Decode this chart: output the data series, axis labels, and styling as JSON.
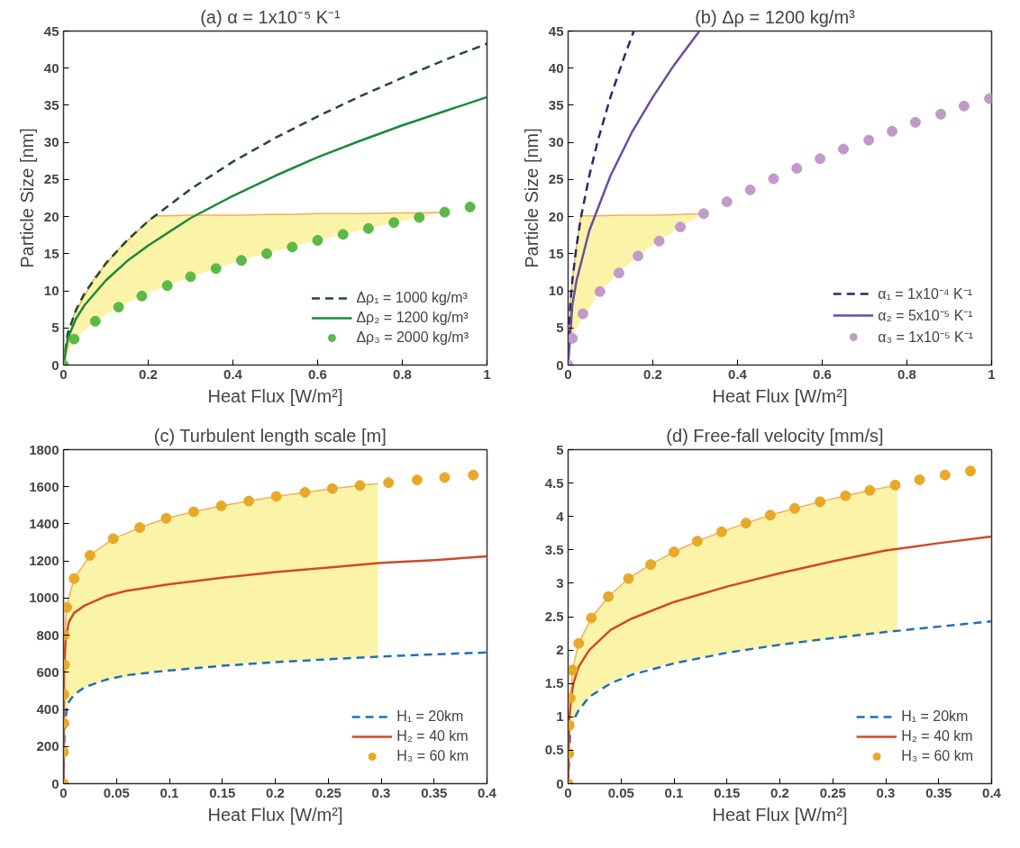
{
  "chart_data": [
    {
      "type": "line",
      "title": "(a)   α = 1x10⁻⁵ K⁻¹",
      "xlabel": "Heat Flux [W/m²]",
      "ylabel": "Particle Size [nm]",
      "xlim": [
        0,
        1
      ],
      "ylim": [
        0,
        45
      ],
      "xticks": [
        0,
        0.2,
        0.4,
        0.6,
        0.8,
        1
      ],
      "yticks": [
        0,
        5,
        10,
        15,
        20,
        25,
        30,
        35,
        40,
        45
      ],
      "legend": "bottom right",
      "series": [
        {
          "color": "#f0b060",
          "x": [
            0,
            0.025,
            0.075,
            0.13,
            0.185,
            0.215,
            0.245,
            0.3,
            0.36,
            0.42,
            0.48,
            0.54,
            0.6,
            0.66,
            0.72,
            0.78,
            0.84,
            0.9
          ],
          "values": [
            0,
            6.8,
            11.9,
            15.6,
            18.6,
            20.1,
            20.1,
            20.2,
            20.2,
            20.2,
            20.3,
            20.3,
            20.4,
            20.4,
            20.4,
            20.5,
            20.5,
            20.6
          ],
          "upper": [
            0,
            6.8,
            11.9,
            15.6,
            18.6,
            20.1,
            20.1,
            20.2,
            20.2,
            20.2,
            20.3,
            20.3,
            20.4,
            20.4,
            20.4,
            20.5,
            20.5,
            20.6
          ],
          "lower": [
            0,
            3.5,
            5.9,
            7.8,
            9.3,
            10,
            10.7,
            11.9,
            13,
            14.1,
            15,
            15.9,
            16.8,
            17.6,
            18.4,
            19.2,
            19.9,
            20.6
          ]
        },
        {
          "name": "Δρ₁ = 1000 kg/m³",
          "color": "#1e4d2b",
          "line_style": "dashed",
          "x": [
            0,
            0.01,
            0.03,
            0.05,
            0.1,
            0.15,
            0.2,
            0.3,
            0.4,
            0.5,
            0.6,
            0.7,
            0.8,
            0.9,
            1
          ],
          "values": [
            0,
            4.3,
            7.5,
            9.7,
            13.7,
            16.8,
            19.4,
            23.7,
            27.4,
            30.6,
            33.5,
            36.2,
            38.7,
            41.1,
            43.3
          ]
        },
        {
          "name": "Δρ₂ = 1200 kg/m³",
          "color": "#1a8a3a",
          "line_style": "solid",
          "x": [
            0,
            0.01,
            0.03,
            0.05,
            0.1,
            0.15,
            0.2,
            0.3,
            0.4,
            0.5,
            0.6,
            0.7,
            0.8,
            0.9,
            1
          ],
          "values": [
            0,
            3.6,
            6.3,
            8.1,
            11.4,
            14,
            16.1,
            19.8,
            22.8,
            25.5,
            28,
            30.2,
            32.3,
            34.2,
            36.1
          ]
        },
        {
          "type": "scatter",
          "name": "Δρ₃ = 2000 kg/m³",
          "color": "#5cb848",
          "marker": "circle",
          "x": [
            0,
            0.025,
            0.075,
            0.13,
            0.185,
            0.245,
            0.3,
            0.36,
            0.42,
            0.48,
            0.54,
            0.6,
            0.66,
            0.72,
            0.78,
            0.84,
            0.9,
            0.96
          ],
          "values": [
            0,
            3.5,
            5.9,
            7.8,
            9.3,
            10.7,
            11.9,
            13,
            14.1,
            15,
            15.9,
            16.8,
            17.6,
            18.4,
            19.2,
            19.9,
            20.6,
            21.3
          ]
        }
      ]
    },
    {
      "type": "line",
      "title": "(b)   Δρ = 1200 kg/m³",
      "xlabel": "Heat Flux [W/m²]",
      "ylabel": "Particle Size [nm]",
      "xlim": [
        0,
        1
      ],
      "ylim": [
        0,
        45
      ],
      "xticks": [
        0,
        0.2,
        0.4,
        0.6,
        0.8,
        1
      ],
      "yticks": [
        0,
        5,
        10,
        15,
        20,
        25,
        30,
        35,
        40,
        45
      ],
      "legend": "bottom right",
      "series": [
        {
          "color": "#f0b060",
          "x": [
            0,
            0.005,
            0.01,
            0.02,
            0.03,
            0.075,
            0.12,
            0.165,
            0.215,
            0.265,
            0.32
          ],
          "values": [
            0,
            8.1,
            11.4,
            16.1,
            20.1,
            20.1,
            20.2,
            20.2,
            20.2,
            20.3,
            20.4
          ],
          "upper": [
            0,
            8.1,
            11.4,
            16.1,
            20.1,
            20.1,
            20.2,
            20.2,
            20.2,
            20.3,
            20.4
          ],
          "lower": [
            0,
            2.5,
            3.6,
            5,
            5.9,
            9.9,
            12.4,
            14.7,
            16.7,
            18.6,
            20.4
          ]
        },
        {
          "name": "α₁ = 1x10⁻⁴ K⁻¹",
          "color": "#2a2a6e",
          "line_style": "dashed",
          "x": [
            0,
            0.005,
            0.01,
            0.02,
            0.03,
            0.05,
            0.07,
            0.1,
            0.13,
            0.155
          ],
          "values": [
            0,
            8.1,
            11.4,
            16.1,
            19.8,
            25.5,
            30.2,
            36.1,
            41.1,
            45
          ]
        },
        {
          "name": "α₂ = 5x10⁻⁵ K⁻¹",
          "color": "#6a4ea0",
          "line_style": "solid",
          "x": [
            0,
            0.01,
            0.02,
            0.05,
            0.1,
            0.15,
            0.2,
            0.25,
            0.31
          ],
          "values": [
            0,
            8.1,
            11.4,
            18.1,
            25.5,
            31.3,
            36.1,
            40.4,
            45
          ]
        },
        {
          "type": "scatter",
          "name": "α₃ = 1x10⁻⁵ K⁻¹",
          "color": "#c29ac9",
          "marker": "circle",
          "x": [
            0,
            0.01,
            0.035,
            0.075,
            0.12,
            0.165,
            0.215,
            0.265,
            0.32,
            0.375,
            0.43,
            0.485,
            0.54,
            0.595,
            0.65,
            0.71,
            0.765,
            0.82,
            0.88,
            0.935,
            0.995
          ],
          "values": [
            0,
            3.6,
            6.9,
            9.9,
            12.4,
            14.7,
            16.7,
            18.6,
            20.4,
            22,
            23.6,
            25.1,
            26.5,
            27.8,
            29.1,
            30.3,
            31.5,
            32.7,
            33.8,
            34.9,
            35.9
          ]
        }
      ]
    },
    {
      "type": "line",
      "title": "(c)   Turbulent length scale [m]",
      "xlabel": "Heat Flux [W/m²]",
      "xlim": [
        0,
        0.4
      ],
      "ylim": [
        0,
        1800
      ],
      "xticks": [
        0,
        0.05,
        0.1,
        0.15,
        0.2,
        0.25,
        0.3,
        0.35,
        0.4
      ],
      "yticks": [
        0,
        200,
        400,
        600,
        800,
        1000,
        1200,
        1400,
        1600,
        1800
      ],
      "legend": "bottom right",
      "series": [
        {
          "color": "#f0b060",
          "x": [
            0,
            0.001,
            0.003,
            0.005,
            0.01,
            0.025,
            0.047,
            0.072,
            0.097,
            0.123,
            0.149,
            0.175,
            0.201,
            0.228,
            0.254,
            0.28,
            0.297
          ],
          "values": [
            0,
            800,
            950,
            1000,
            1105,
            1230,
            1320,
            1380,
            1430,
            1465,
            1497,
            1523,
            1548,
            1570,
            1590,
            1607,
            1617
          ],
          "upper": [
            0,
            800,
            950,
            1000,
            1105,
            1230,
            1320,
            1380,
            1430,
            1465,
            1497,
            1523,
            1548,
            1570,
            1590,
            1607,
            1617
          ],
          "lower": [
            0,
            300,
            400,
            440,
            480,
            530,
            565,
            590,
            610,
            625,
            640,
            650,
            658,
            667,
            675,
            681,
            685
          ]
        },
        {
          "name": "H₁ = 20km",
          "color": "#1f6fb8",
          "line_style": "dashed",
          "x": [
            0,
            0.001,
            0.003,
            0.005,
            0.01,
            0.02,
            0.04,
            0.06,
            0.1,
            0.15,
            0.2,
            0.25,
            0.3,
            0.35,
            0.4
          ],
          "values": [
            0,
            300,
            400,
            440,
            480,
            520,
            560,
            585,
            610,
            635,
            655,
            670,
            685,
            697,
            707
          ]
        },
        {
          "name": "H₂ = 40 km",
          "color": "#d04a25",
          "line_style": "solid",
          "x": [
            0,
            0.0005,
            0.002,
            0.005,
            0.01,
            0.02,
            0.04,
            0.06,
            0.1,
            0.15,
            0.2,
            0.25,
            0.3,
            0.35,
            0.4
          ],
          "values": [
            0,
            600,
            780,
            870,
            920,
            960,
            1010,
            1040,
            1075,
            1110,
            1140,
            1165,
            1190,
            1205,
            1225
          ]
        },
        {
          "type": "scatter",
          "name": "H₃ = 60 km",
          "color": "#e8a828",
          "marker": "circle",
          "x": [
            0,
            0,
            0.0005,
            0.0005,
            0.001,
            0.001,
            0.003,
            0.01,
            0.025,
            0.047,
            0.072,
            0.097,
            0.123,
            0.149,
            0.175,
            0.201,
            0.228,
            0.254,
            0.28,
            0.307,
            0.334,
            0.36,
            0.387
          ],
          "values": [
            0,
            170,
            325,
            480,
            640,
            800,
            950,
            1105,
            1230,
            1320,
            1380,
            1430,
            1465,
            1497,
            1523,
            1548,
            1570,
            1590,
            1607,
            1622,
            1637,
            1650,
            1663
          ]
        }
      ]
    },
    {
      "type": "line",
      "title": "(d)   Free-fall velocity [mm/s]",
      "xlabel": "Heat Flux [W/m²]",
      "xlim": [
        0,
        0.4
      ],
      "ylim": [
        0,
        5
      ],
      "xticks": [
        0,
        0.05,
        0.1,
        0.15,
        0.2,
        0.25,
        0.3,
        0.35,
        0.4
      ],
      "yticks": [
        0,
        0.5,
        1,
        1.5,
        2,
        2.5,
        3,
        3.5,
        4,
        4.5,
        5
      ],
      "legend": "bottom right",
      "series": [
        {
          "color": "#f0b060",
          "x": [
            0,
            0.001,
            0.004,
            0.01,
            0.022,
            0.038,
            0.057,
            0.078,
            0.1,
            0.122,
            0.145,
            0.168,
            0.191,
            0.214,
            0.238,
            0.262,
            0.285,
            0.311
          ],
          "values": [
            0,
            0.87,
            1.7,
            2.1,
            2.48,
            2.8,
            3.07,
            3.28,
            3.47,
            3.63,
            3.77,
            3.9,
            4.02,
            4.12,
            4.22,
            4.31,
            4.39,
            4.47
          ],
          "upper": [
            0,
            0.87,
            1.7,
            2.1,
            2.48,
            2.8,
            3.07,
            3.28,
            3.47,
            3.63,
            3.77,
            3.9,
            4.02,
            4.12,
            4.22,
            4.31,
            4.39,
            4.47
          ],
          "lower": [
            0,
            0.6,
            0.9,
            1.1,
            1.33,
            1.5,
            1.64,
            1.74,
            1.8,
            1.88,
            1.95,
            2,
            2.06,
            2.1,
            2.15,
            2.19,
            2.23,
            2.28
          ]
        },
        {
          "name": "H₁ = 20km",
          "color": "#1f6fb8",
          "line_style": "dashed",
          "x": [
            0,
            0.002,
            0.005,
            0.01,
            0.02,
            0.04,
            0.06,
            0.1,
            0.15,
            0.2,
            0.25,
            0.3,
            0.35,
            0.4
          ],
          "values": [
            0,
            0.8,
            0.95,
            1.1,
            1.3,
            1.5,
            1.63,
            1.8,
            1.96,
            2.08,
            2.18,
            2.27,
            2.35,
            2.43
          ]
        },
        {
          "name": "H₂ = 40 km",
          "color": "#d04a25",
          "line_style": "solid",
          "x": [
            0,
            0.001,
            0.003,
            0.005,
            0.01,
            0.02,
            0.04,
            0.06,
            0.1,
            0.15,
            0.2,
            0.25,
            0.3,
            0.35,
            0.4
          ],
          "values": [
            0,
            0.95,
            1.3,
            1.5,
            1.75,
            2,
            2.3,
            2.47,
            2.72,
            2.95,
            3.15,
            3.33,
            3.49,
            3.6,
            3.7
          ]
        },
        {
          "type": "scatter",
          "name": "H₃ = 60 km",
          "color": "#e8a828",
          "marker": "circle",
          "x": [
            0,
            0.0005,
            0.001,
            0.002,
            0.004,
            0.01,
            0.022,
            0.038,
            0.057,
            0.078,
            0.1,
            0.122,
            0.145,
            0.168,
            0.191,
            0.214,
            0.238,
            0.262,
            0.285,
            0.309,
            0.332,
            0.356,
            0.38
          ],
          "values": [
            0,
            0.45,
            0.87,
            1.28,
            1.7,
            2.1,
            2.48,
            2.8,
            3.07,
            3.28,
            3.47,
            3.63,
            3.77,
            3.9,
            4.02,
            4.12,
            4.22,
            4.31,
            4.39,
            4.47,
            4.55,
            4.62,
            4.68
          ]
        }
      ]
    }
  ]
}
